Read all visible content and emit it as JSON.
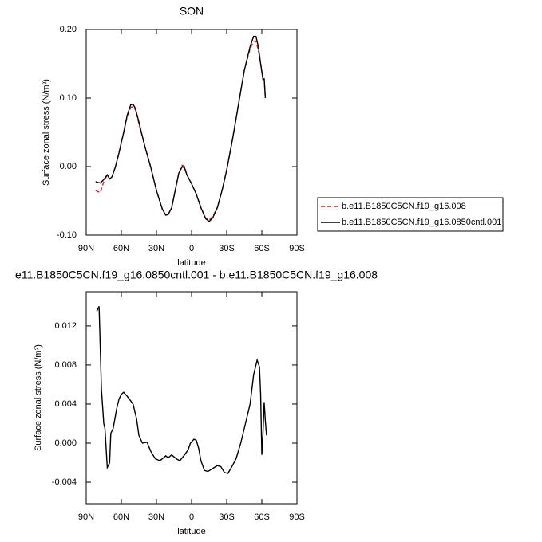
{
  "chart_data": [
    {
      "type": "line",
      "title": "SON",
      "xlabel": "latitude",
      "ylabel": "Surface zonal stress (N/m²)",
      "x": [
        82,
        78,
        75,
        72,
        70,
        68,
        65,
        62,
        58,
        55,
        52,
        50,
        48,
        45,
        40,
        35,
        30,
        25,
        22,
        20,
        17,
        14,
        11,
        8,
        6,
        4,
        0,
        -4,
        -8,
        -12,
        -15,
        -18,
        -22,
        -26,
        -30,
        -35,
        -40,
        -45,
        -50,
        -53,
        -55,
        -57,
        -59,
        -61,
        -62,
        -63
      ],
      "series": [
        {
          "name": "b.e11.B1850C5CN.f19_g16.008",
          "color": "#e41a1c",
          "dash": true,
          "values": [
            -0.035,
            -0.038,
            -0.022,
            -0.012,
            -0.018,
            -0.015,
            0.0,
            0.02,
            0.05,
            0.073,
            0.086,
            0.088,
            0.083,
            0.063,
            0.03,
            0.0,
            -0.035,
            -0.062,
            -0.071,
            -0.07,
            -0.06,
            -0.035,
            -0.01,
            0.002,
            0.0,
            -0.012,
            -0.025,
            -0.04,
            -0.06,
            -0.075,
            -0.078,
            -0.073,
            -0.06,
            -0.035,
            -0.005,
            0.04,
            0.09,
            0.14,
            0.172,
            0.183,
            0.183,
            0.17,
            0.15,
            0.128,
            0.13,
            0.1
          ]
        },
        {
          "name": "b.e11.B1850C5CN.f19_g16.0850cntl.001",
          "color": "#000000",
          "dash": false,
          "values": [
            -0.022,
            -0.024,
            -0.019,
            -0.012,
            -0.018,
            -0.015,
            0.0,
            0.02,
            0.05,
            0.075,
            0.09,
            0.091,
            0.085,
            0.065,
            0.03,
            0.0,
            -0.035,
            -0.062,
            -0.071,
            -0.07,
            -0.06,
            -0.035,
            -0.01,
            0.0,
            -0.002,
            -0.012,
            -0.025,
            -0.04,
            -0.06,
            -0.076,
            -0.08,
            -0.075,
            -0.06,
            -0.035,
            -0.005,
            0.04,
            0.09,
            0.14,
            0.175,
            0.19,
            0.19,
            0.175,
            0.15,
            0.127,
            0.128,
            0.1
          ]
        }
      ],
      "xlim": [
        90,
        -90
      ],
      "xticks": [
        {
          "value": 90,
          "label": "90N"
        },
        {
          "value": 60,
          "label": "60N"
        },
        {
          "value": 30,
          "label": "30N"
        },
        0,
        {
          "value": -30,
          "label": "30S"
        },
        {
          "value": -60,
          "label": "60S"
        },
        {
          "value": -90,
          "label": "90S"
        }
      ],
      "ylim": [
        -0.1,
        0.2
      ],
      "yticks": [
        {
          "value": -0.1,
          "label": "-0.10"
        },
        {
          "value": 0,
          "label": "0.00"
        },
        {
          "value": 0.1,
          "label": "0.10"
        },
        {
          "value": 0.2,
          "label": "0.20"
        }
      ],
      "legend": "outside-right"
    },
    {
      "type": "line",
      "title": "e11.B1850C5CN.f19_g16.0850cntl.001 - b.e11.B1850C5CN.f19_g16.008",
      "xlabel": "latitude",
      "ylabel": "Surface zonal stress (N/m²)",
      "x": [
        81,
        79,
        77,
        75,
        74,
        72,
        70,
        69,
        67,
        64,
        62,
        60,
        58,
        55,
        50,
        47,
        45,
        42,
        38,
        35,
        31,
        27,
        22,
        20,
        17,
        13,
        10,
        6,
        3,
        1,
        -2,
        -4,
        -6,
        -8,
        -11,
        -14,
        -18,
        -22,
        -25,
        -28,
        -31,
        -34,
        -38,
        -42,
        -46,
        -50,
        -53,
        -56,
        -58,
        -59,
        -60,
        -61,
        -62,
        -63,
        -64
      ],
      "values": [
        0.0135,
        0.014,
        0.0055,
        0.002,
        0.0015,
        -0.0025,
        -0.002,
        0.001,
        0.0015,
        0.0035,
        0.0045,
        0.005,
        0.0052,
        0.0048,
        0.004,
        0.0025,
        0.0008,
        0.0,
        0.0001,
        -0.0008,
        -0.0016,
        -0.0018,
        -0.0013,
        -0.0015,
        -0.0012,
        -0.0016,
        -0.0018,
        -0.0012,
        -0.0007,
        0.0,
        0.0004,
        0.0003,
        -0.0005,
        -0.0018,
        -0.0028,
        -0.0029,
        -0.0026,
        -0.0023,
        -0.0024,
        -0.003,
        -0.0031,
        -0.0025,
        -0.0016,
        0.0,
        0.002,
        0.004,
        0.007,
        0.0085,
        0.0078,
        0.005,
        -0.0012,
        0.001,
        0.0042,
        0.0023,
        0.0008
      ],
      "color": "#000000",
      "xlim": [
        90,
        -90
      ],
      "xticks": [
        {
          "value": 90,
          "label": "90N"
        },
        {
          "value": 60,
          "label": "60N"
        },
        {
          "value": 30,
          "label": "30N"
        },
        0,
        {
          "value": -30,
          "label": "30S"
        },
        {
          "value": -60,
          "label": "60S"
        },
        {
          "value": -90,
          "label": "90S"
        }
      ],
      "ylim": [
        -0.0062,
        0.0155
      ],
      "yticks": [
        {
          "value": -0.004,
          "label": "-0.004"
        },
        {
          "value": 0,
          "label": "0.000"
        },
        {
          "value": 0.004,
          "label": "0.004"
        },
        {
          "value": 0.008,
          "label": "0.008"
        },
        {
          "value": 0.012,
          "label": "0.012"
        }
      ]
    }
  ]
}
